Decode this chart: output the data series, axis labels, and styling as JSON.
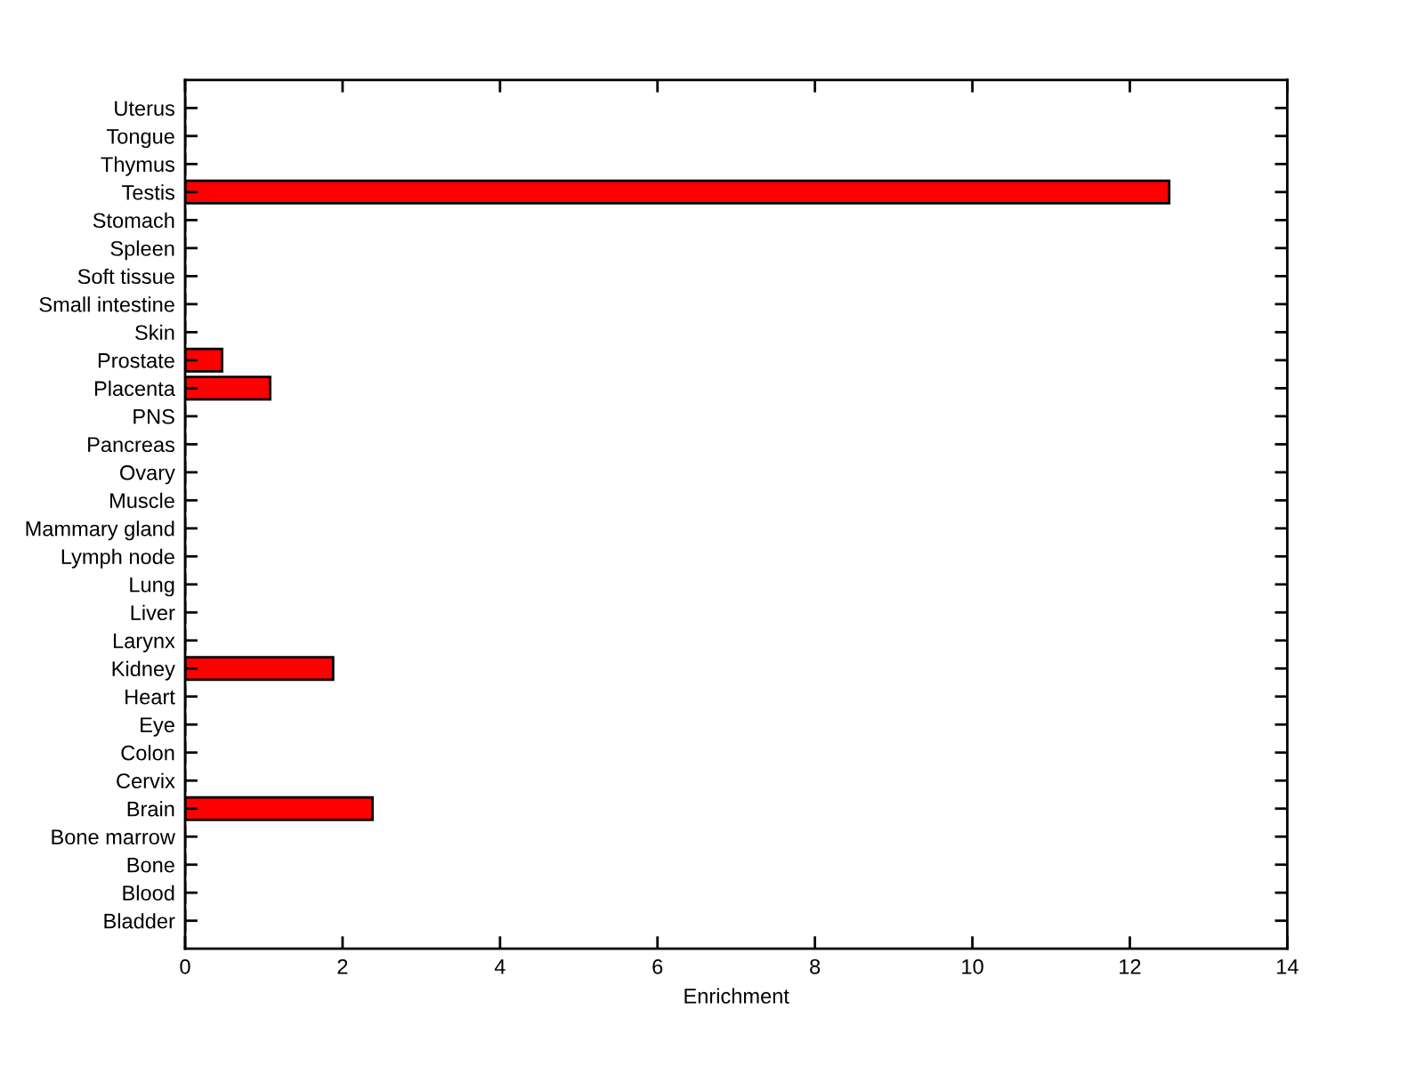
{
  "chart_data": {
    "type": "bar",
    "orientation": "horizontal",
    "xlabel": "Enrichment",
    "categories": [
      "Uterus",
      "Tongue",
      "Thymus",
      "Testis",
      "Stomach",
      "Spleen",
      "Soft tissue",
      "Small intestine",
      "Skin",
      "Prostate",
      "Placenta",
      "PNS",
      "Pancreas",
      "Ovary",
      "Muscle",
      "Mammary gland",
      "Lymph node",
      "Lung",
      "Liver",
      "Larynx",
      "Kidney",
      "Heart",
      "Eye",
      "Colon",
      "Cervix",
      "Brain",
      "Bone marrow",
      "Bone",
      "Blood",
      "Bladder"
    ],
    "values": [
      0,
      0,
      0,
      12.5,
      0,
      0,
      0,
      0,
      0,
      0.47,
      1.08,
      0,
      0,
      0,
      0,
      0,
      0,
      0,
      0,
      0,
      1.88,
      0,
      0,
      0,
      0,
      2.38,
      0,
      0,
      0,
      0
    ],
    "color": "#ff0000",
    "xlim": [
      0,
      14
    ],
    "xticks": [
      0,
      2,
      4,
      6,
      8,
      10,
      12,
      14
    ],
    "grid": false
  }
}
